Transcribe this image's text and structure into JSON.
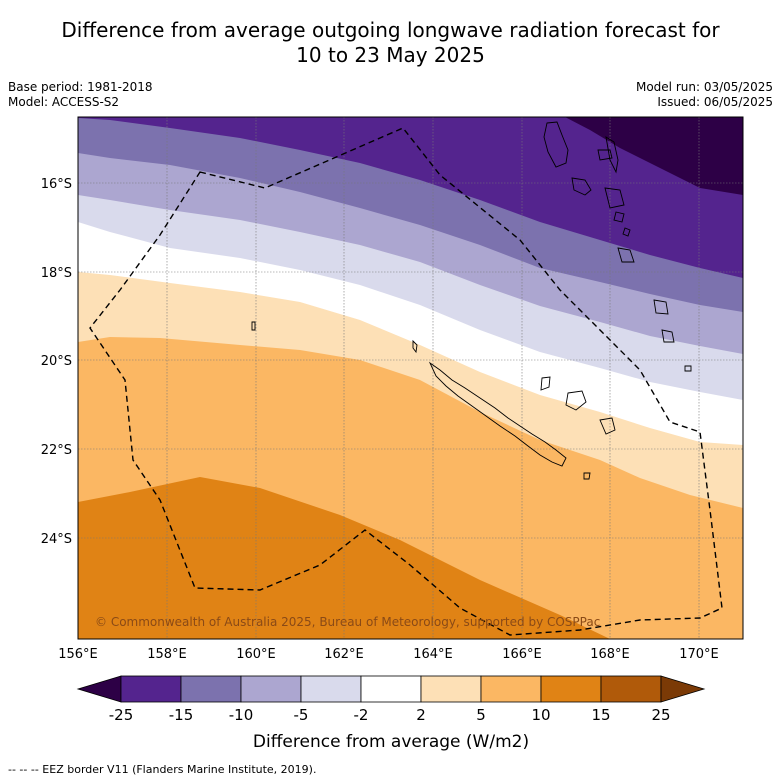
{
  "header": {
    "title_line1": "Difference from average outgoing longwave radiation forecast for",
    "title_line2": "10 to 23 May 2025",
    "base_period": "Base period: 1981-2018",
    "model": "Model: ACCESS-S2",
    "model_run": "Model run: 03/05/2025",
    "issued": "Issued: 06/05/2025"
  },
  "map": {
    "lon_labels": [
      "156°E",
      "158°E",
      "160°E",
      "162°E",
      "164°E",
      "166°E",
      "168°E",
      "170°E"
    ],
    "lat_labels": [
      "16°S",
      "18°S",
      "20°S",
      "22°S",
      "24°S"
    ],
    "copyright": "© Commonwealth of Australia 2025, Bureau of Meteorology, supported by COSPPac",
    "colors": {
      "band_m25_extreme": "#2d0046",
      "band_m25_m15": "#54248e",
      "band_m15_m10": "#7c72ae",
      "band_m10_m5": "#aca6d0",
      "band_m5_m2": "#d9daec",
      "band_m2_p2": "#ffffff",
      "band_p2_p5": "#fde0b6",
      "band_p5_p10": "#fbb763",
      "band_p10_p15": "#e08315"
    }
  },
  "colorbar": {
    "title": "Difference from average (W/m2)",
    "ticks": [
      "-25",
      "-15",
      "-10",
      "-5",
      "-2",
      "2",
      "5",
      "10",
      "15",
      "25"
    ],
    "colors": [
      "#2d0046",
      "#54248e",
      "#7c72ae",
      "#aca6d0",
      "#d9daec",
      "#ffffff",
      "#fde0b6",
      "#fbb763",
      "#e08315",
      "#b05a0a",
      "#7b3a06"
    ]
  },
  "legend": {
    "eez": "--  --  -- EEZ border V11 (Flanders Marine Institute, 2019)."
  }
}
